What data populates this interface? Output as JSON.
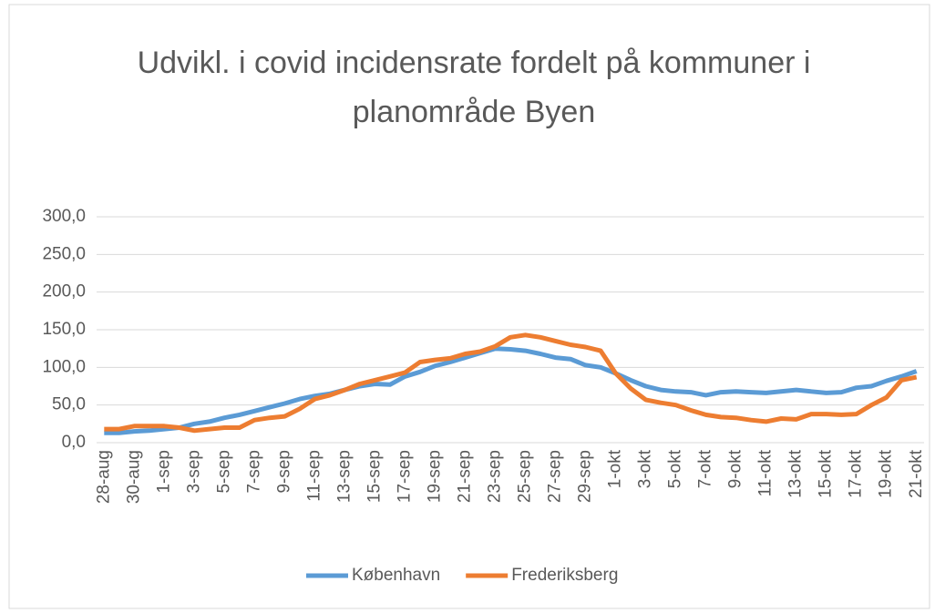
{
  "chart_data": {
    "type": "line",
    "title": "Udvikl. i covid incidensrate fordelt på kommuner i planområde Byen",
    "categories": [
      "28-aug",
      null,
      "30-aug",
      null,
      "1-sep",
      null,
      "3-sep",
      null,
      "5-sep",
      null,
      "7-sep",
      null,
      "9-sep",
      null,
      "11-sep",
      null,
      "13-sep",
      null,
      "15-sep",
      null,
      "17-sep",
      null,
      "19-sep",
      null,
      "21-sep",
      null,
      "23-sep",
      null,
      "25-sep",
      null,
      "27-sep",
      null,
      "29-sep",
      null,
      "1-okt",
      null,
      "3-okt",
      null,
      "5-okt",
      null,
      "7-okt",
      null,
      "9-okt",
      null,
      "11-okt",
      null,
      "13-okt",
      null,
      "15-okt",
      null,
      "17-okt",
      null,
      "19-okt",
      null,
      "21-okt"
    ],
    "series": [
      {
        "name": "København",
        "color": "#5b9bd5",
        "values": [
          13,
          13,
          15,
          16,
          18,
          20,
          25,
          28,
          33,
          37,
          42,
          47,
          52,
          58,
          62,
          65,
          70,
          75,
          78,
          77,
          88,
          94,
          102,
          107,
          113,
          119,
          125,
          124,
          122,
          118,
          113,
          111,
          103,
          100,
          92,
          83,
          75,
          70,
          68,
          67,
          63,
          67,
          68,
          67,
          66,
          68,
          70,
          68,
          66,
          67,
          73,
          75,
          82,
          88,
          95
        ]
      },
      {
        "name": "Frederiksberg",
        "color": "#ed7d31",
        "values": [
          18,
          18,
          22,
          22,
          22,
          20,
          16,
          18,
          20,
          20,
          30,
          33,
          35,
          45,
          58,
          63,
          70,
          78,
          83,
          88,
          93,
          107,
          110,
          112,
          118,
          121,
          128,
          140,
          143,
          140,
          135,
          130,
          127,
          122,
          92,
          72,
          57,
          53,
          50,
          43,
          37,
          34,
          33,
          30,
          28,
          32,
          31,
          38,
          38,
          37,
          38,
          50,
          60,
          83,
          87
        ]
      }
    ],
    "ylim": [
      0,
      300
    ],
    "yticks": [
      {
        "value": 0,
        "label": "0,0"
      },
      {
        "value": 50,
        "label": "50,0"
      },
      {
        "value": 100,
        "label": "100,0"
      },
      {
        "value": 150,
        "label": "150,0"
      },
      {
        "value": 200,
        "label": "200,0"
      },
      {
        "value": 250,
        "label": "250,0"
      },
      {
        "value": 300,
        "label": "300,0"
      }
    ],
    "grid": true,
    "legend": "bottom"
  }
}
